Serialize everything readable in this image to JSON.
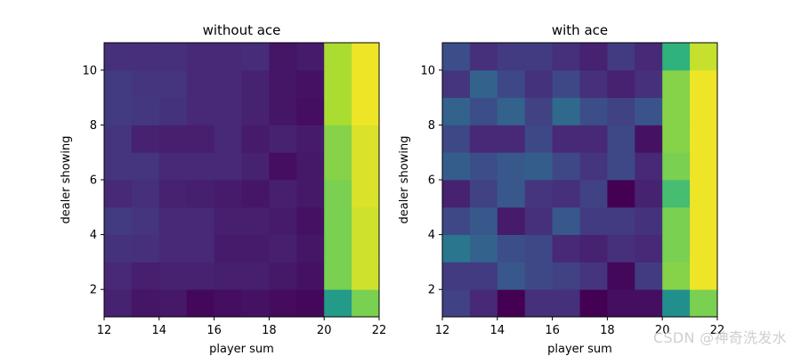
{
  "chart_data": [
    {
      "type": "heatmap",
      "title": "without ace",
      "xlabel": "player sum",
      "ylabel": "dealer showing",
      "xlim": [
        12,
        22
      ],
      "ylim": [
        1,
        11
      ],
      "x_ticks": [
        "12",
        "14",
        "16",
        "18",
        "20",
        "22"
      ],
      "y_ticks": [
        "2",
        "4",
        "6",
        "8",
        "10"
      ],
      "player_sums": [
        12,
        13,
        14,
        15,
        16,
        17,
        18,
        19,
        20,
        21
      ],
      "dealer_showing": [
        1,
        2,
        3,
        4,
        5,
        6,
        7,
        8,
        9,
        10
      ],
      "colormap": "viridis",
      "values": [
        [
          0.1,
          0.06,
          0.07,
          0.02,
          0.04,
          0.05,
          0.03,
          0.02,
          0.55,
          0.8
        ],
        [
          0.12,
          0.09,
          0.1,
          0.1,
          0.09,
          0.09,
          0.07,
          0.05,
          0.8,
          0.93
        ],
        [
          0.15,
          0.14,
          0.12,
          0.12,
          0.08,
          0.08,
          0.09,
          0.06,
          0.8,
          0.93
        ],
        [
          0.18,
          0.16,
          0.12,
          0.12,
          0.09,
          0.09,
          0.08,
          0.05,
          0.8,
          0.93
        ],
        [
          0.12,
          0.14,
          0.1,
          0.09,
          0.08,
          0.06,
          0.09,
          0.07,
          0.8,
          0.95
        ],
        [
          0.16,
          0.16,
          0.12,
          0.12,
          0.12,
          0.1,
          0.04,
          0.07,
          0.82,
          0.95
        ],
        [
          0.16,
          0.1,
          0.09,
          0.09,
          0.12,
          0.08,
          0.1,
          0.08,
          0.82,
          0.95
        ],
        [
          0.18,
          0.17,
          0.15,
          0.12,
          0.12,
          0.1,
          0.06,
          0.04,
          0.88,
          0.98
        ],
        [
          0.18,
          0.16,
          0.16,
          0.12,
          0.12,
          0.1,
          0.06,
          0.05,
          0.88,
          0.98
        ],
        [
          0.14,
          0.14,
          0.14,
          0.12,
          0.12,
          0.13,
          0.06,
          0.08,
          0.88,
          0.98
        ]
      ]
    },
    {
      "type": "heatmap",
      "title": "with ace",
      "xlabel": "player sum",
      "ylabel": "dealer showing",
      "xlim": [
        12,
        22
      ],
      "ylim": [
        1,
        11
      ],
      "x_ticks": [
        "12",
        "14",
        "16",
        "18",
        "20",
        "22"
      ],
      "y_ticks": [
        "2",
        "4",
        "6",
        "8",
        "10"
      ],
      "player_sums": [
        12,
        13,
        14,
        15,
        16,
        17,
        18,
        19,
        20,
        21
      ],
      "dealer_showing": [
        1,
        2,
        3,
        4,
        5,
        6,
        7,
        8,
        9,
        10
      ],
      "colormap": "viridis",
      "values": [
        [
          0.2,
          0.12,
          0.0,
          0.14,
          0.14,
          0.0,
          0.04,
          0.04,
          0.5,
          0.8
        ],
        [
          0.18,
          0.18,
          0.28,
          0.22,
          0.2,
          0.16,
          0.02,
          0.18,
          0.82,
          0.98
        ],
        [
          0.4,
          0.32,
          0.24,
          0.22,
          0.12,
          0.1,
          0.14,
          0.12,
          0.8,
          0.98
        ],
        [
          0.22,
          0.28,
          0.08,
          0.14,
          0.28,
          0.18,
          0.18,
          0.15,
          0.8,
          0.98
        ],
        [
          0.1,
          0.2,
          0.28,
          0.16,
          0.14,
          0.2,
          0.0,
          0.1,
          0.7,
          0.98
        ],
        [
          0.3,
          0.24,
          0.28,
          0.3,
          0.22,
          0.16,
          0.22,
          0.12,
          0.8,
          0.98
        ],
        [
          0.22,
          0.12,
          0.12,
          0.22,
          0.12,
          0.12,
          0.22,
          0.05,
          0.82,
          0.98
        ],
        [
          0.32,
          0.24,
          0.32,
          0.2,
          0.35,
          0.24,
          0.2,
          0.26,
          0.82,
          0.98
        ],
        [
          0.16,
          0.32,
          0.22,
          0.15,
          0.22,
          0.14,
          0.1,
          0.14,
          0.82,
          0.98
        ],
        [
          0.24,
          0.14,
          0.18,
          0.18,
          0.14,
          0.1,
          0.18,
          0.12,
          0.65,
          0.92
        ]
      ]
    }
  ],
  "watermark": "CSDN @神奇洗发水"
}
